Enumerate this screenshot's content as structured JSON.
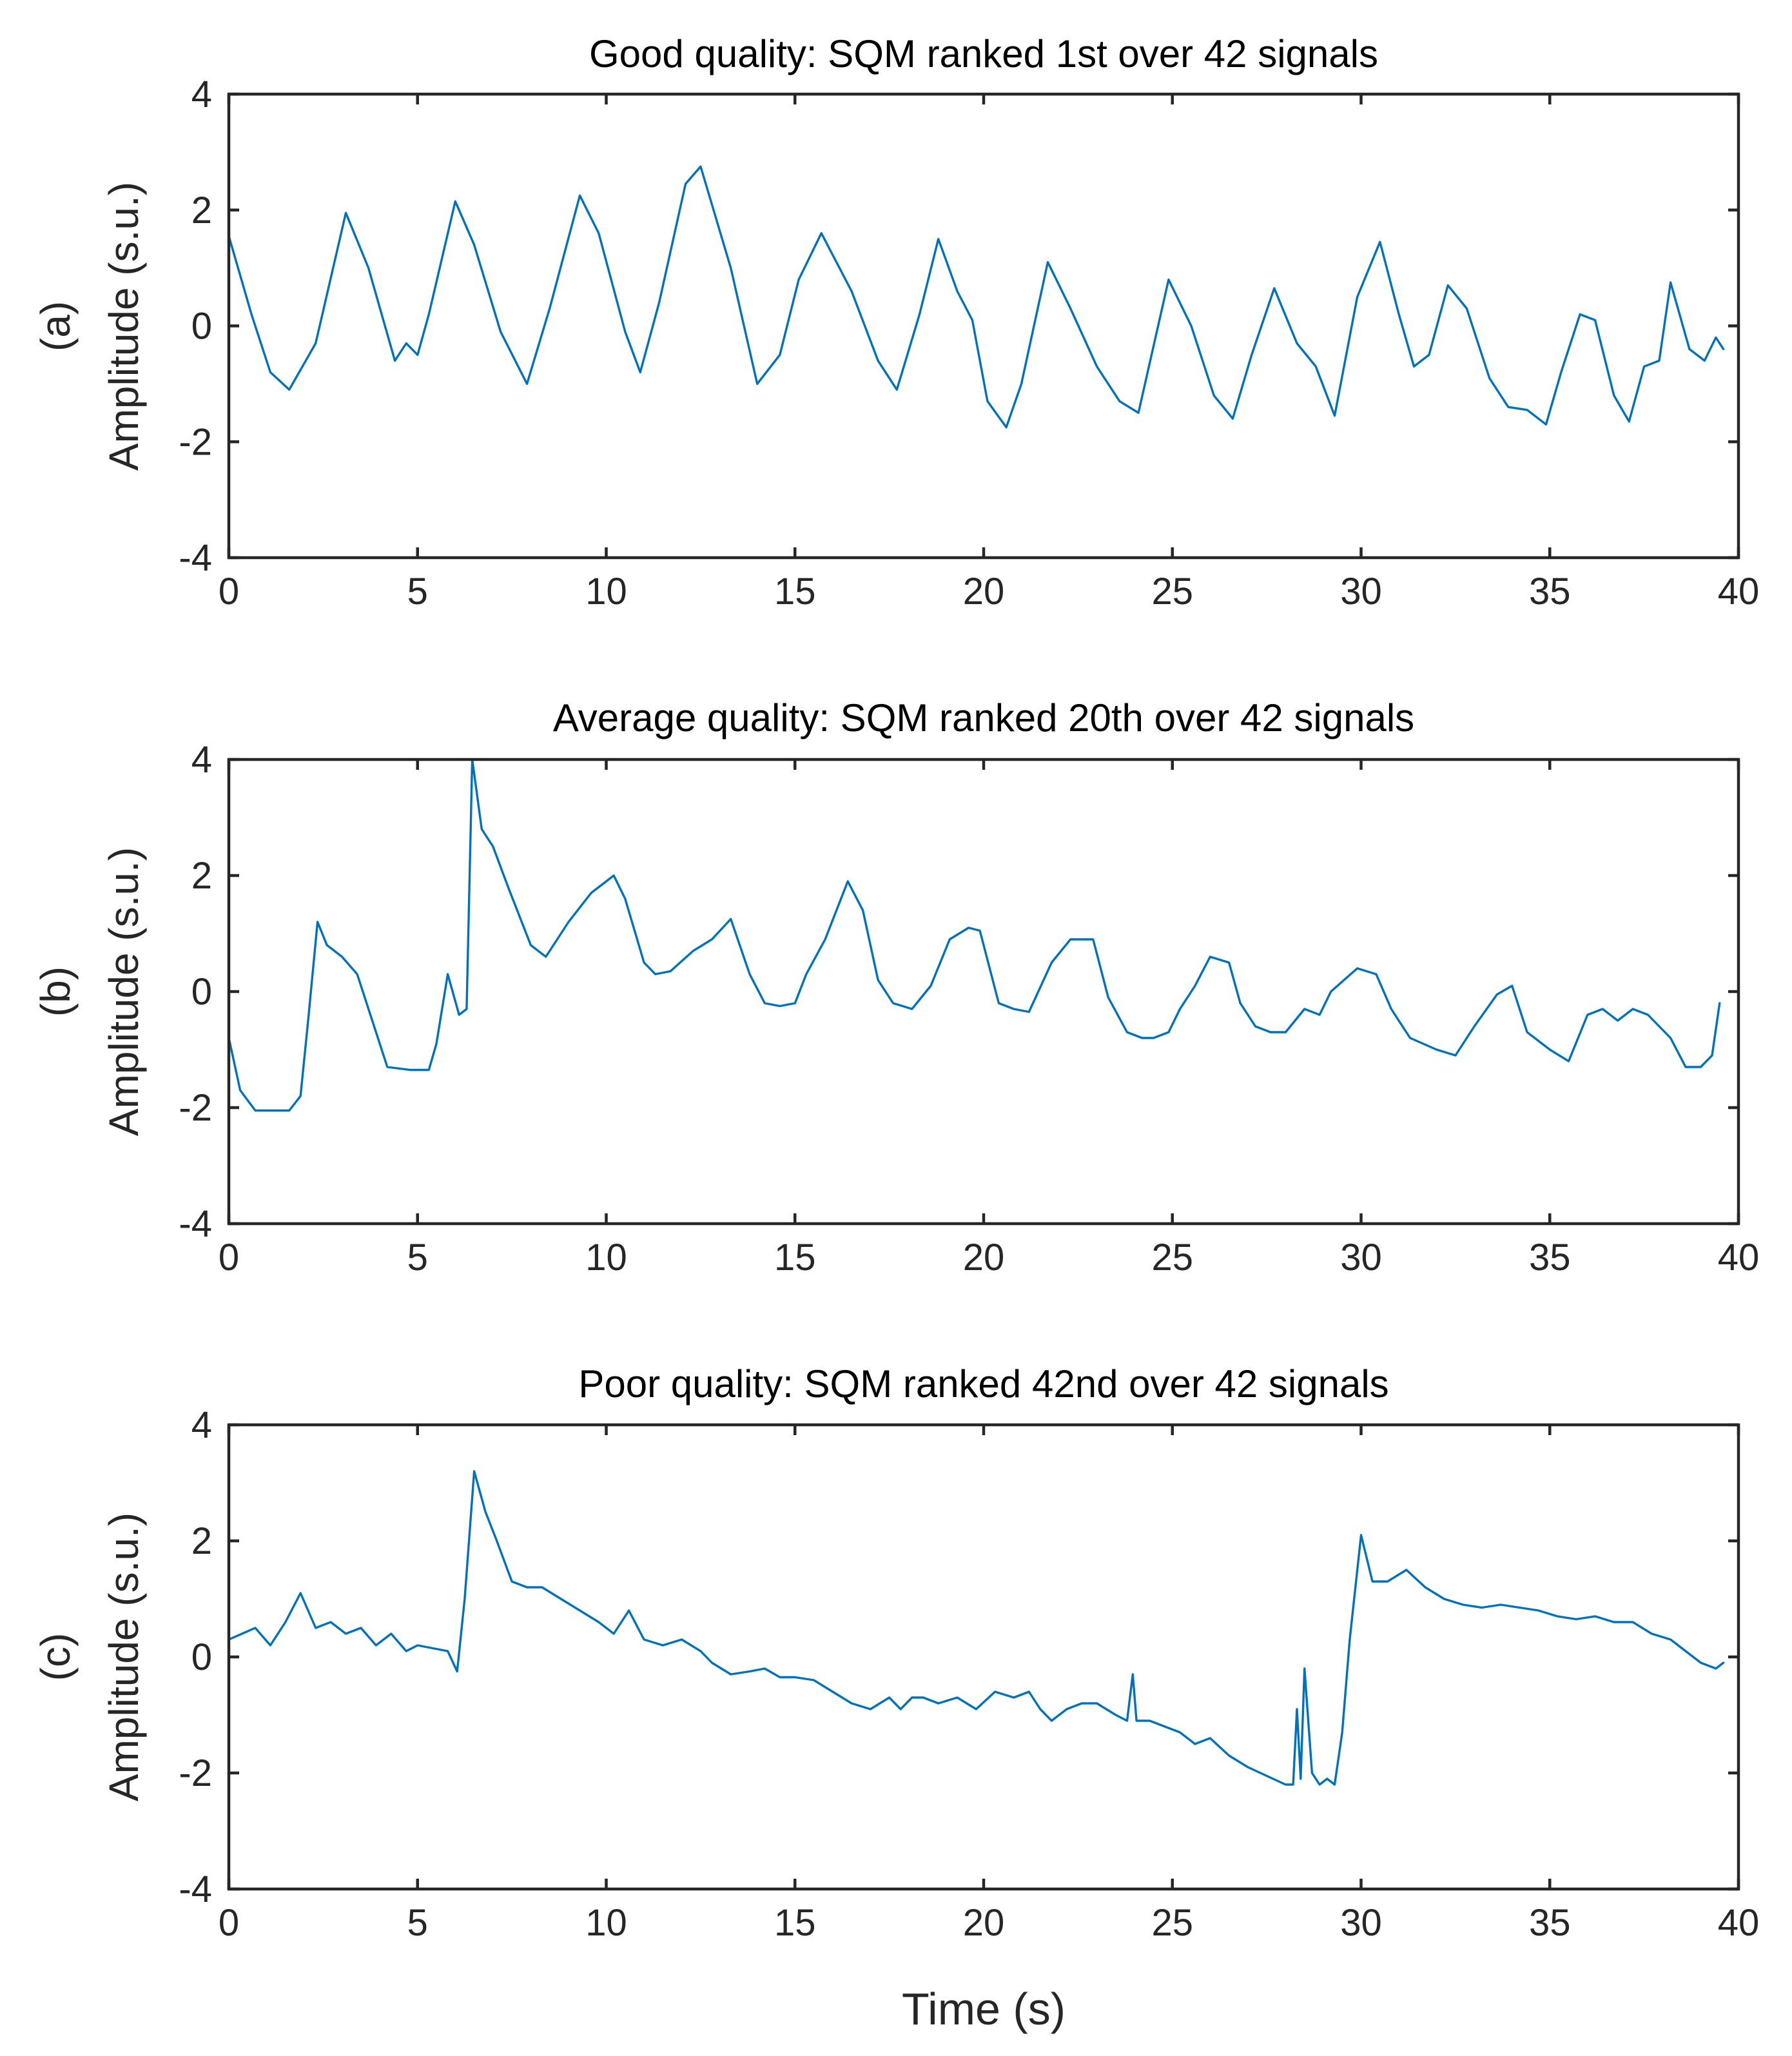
{
  "colors": {
    "line": "#0072BD",
    "axes": "#262626",
    "title": "#000000"
  },
  "chart_data": [
    {
      "type": "line",
      "panel_label": "(a)",
      "title": "Good quality: SQM ranked 1st over 42 signals",
      "xlabel": "",
      "ylabel": "Amplitude (s.u.)",
      "xlim": [
        0,
        40
      ],
      "ylim": [
        -4,
        4
      ],
      "xticks": [
        "0",
        "5",
        "10",
        "15",
        "20",
        "25",
        "30",
        "35",
        "40"
      ],
      "yticks": [
        "4",
        "2",
        "0",
        "-2",
        "-4"
      ],
      "series": [
        {
          "name": "signal",
          "x": [
            0,
            0.6,
            1.1,
            1.6,
            2.3,
            3.1,
            3.7,
            4.4,
            4.7,
            5.0,
            5.3,
            6.0,
            6.5,
            7.2,
            7.9,
            8.5,
            9.3,
            9.8,
            10.5,
            10.9,
            11.4,
            12.1,
            12.5,
            13.3,
            14.0,
            14.6,
            15.1,
            15.7,
            16.5,
            17.2,
            17.7,
            18.3,
            18.8,
            19.3,
            19.7,
            20.1,
            20.6,
            21.0,
            21.7,
            22.3,
            23.0,
            23.6,
            24.1,
            24.9,
            25.5,
            26.1,
            26.6,
            27.1,
            27.7,
            28.3,
            28.8,
            29.3,
            29.9,
            30.5,
            31.0,
            31.4,
            31.8,
            32.3,
            32.8,
            33.4,
            33.9,
            34.4,
            34.9,
            35.3,
            35.8,
            36.2,
            36.7,
            37.1,
            37.5,
            37.9,
            38.2,
            38.7,
            39.1,
            39.4,
            39.6
          ],
          "y": [
            1.55,
            0.2,
            -0.8,
            -1.1,
            -0.3,
            1.95,
            1.0,
            -0.6,
            -0.3,
            -0.5,
            0.2,
            2.15,
            1.4,
            -0.1,
            -1.0,
            0.3,
            2.25,
            1.6,
            -0.1,
            -0.8,
            0.4,
            2.45,
            2.75,
            1.0,
            -1.0,
            -0.5,
            0.8,
            1.6,
            0.6,
            -0.6,
            -1.1,
            0.2,
            1.5,
            0.6,
            0.1,
            -1.3,
            -1.75,
            -1.0,
            1.1,
            0.3,
            -0.7,
            -1.3,
            -1.5,
            0.8,
            0.0,
            -1.2,
            -1.6,
            -0.5,
            0.65,
            -0.3,
            -0.7,
            -1.55,
            0.5,
            1.45,
            0.2,
            -0.7,
            -0.5,
            0.7,
            0.3,
            -0.9,
            -1.4,
            -1.45,
            -1.7,
            -0.8,
            0.2,
            0.1,
            -1.2,
            -1.65,
            -0.7,
            -0.6,
            0.75,
            -0.4,
            -0.6,
            -0.2,
            -0.4
          ]
        }
      ]
    },
    {
      "type": "line",
      "panel_label": "(b)",
      "title": "Average quality: SQM ranked 20th over 42 signals",
      "xlabel": "",
      "ylabel": "Amplitude (s.u.)",
      "xlim": [
        0,
        40
      ],
      "ylim": [
        -4,
        4
      ],
      "xticks": [
        "0",
        "5",
        "10",
        "15",
        "20",
        "25",
        "30",
        "35",
        "40"
      ],
      "yticks": [
        "4",
        "2",
        "0",
        "-2",
        "-4"
      ],
      "series": [
        {
          "name": "signal",
          "x": [
            0,
            0.3,
            0.7,
            1.2,
            1.6,
            1.9,
            2.1,
            2.35,
            2.6,
            3.0,
            3.4,
            4.2,
            4.8,
            5.3,
            5.5,
            5.8,
            6.1,
            6.3,
            6.45,
            6.7,
            7.0,
            7.4,
            8.0,
            8.4,
            9.0,
            9.6,
            10.2,
            10.5,
            11.0,
            11.3,
            11.7,
            12.3,
            12.8,
            13.3,
            13.8,
            14.2,
            14.6,
            15.0,
            15.3,
            15.8,
            16.4,
            16.8,
            17.2,
            17.6,
            18.1,
            18.6,
            19.1,
            19.6,
            19.9,
            20.4,
            20.8,
            21.2,
            21.8,
            22.3,
            22.9,
            23.3,
            23.8,
            24.2,
            24.5,
            24.9,
            25.2,
            25.6,
            26.0,
            26.5,
            26.8,
            27.2,
            27.6,
            28.0,
            28.5,
            28.9,
            29.2,
            29.9,
            30.4,
            30.8,
            31.3,
            32.0,
            32.5,
            33.0,
            33.6,
            34.0,
            34.4,
            35.0,
            35.5,
            36.0,
            36.4,
            36.8,
            37.2,
            37.6,
            38.2,
            38.6,
            39.0,
            39.3,
            39.5
          ],
          "y": [
            -0.8,
            -1.7,
            -2.05,
            -2.05,
            -2.05,
            -1.8,
            -0.5,
            1.2,
            0.8,
            0.6,
            0.3,
            -1.3,
            -1.35,
            -1.35,
            -0.9,
            0.3,
            -0.4,
            -0.3,
            4.0,
            2.8,
            2.5,
            1.8,
            0.8,
            0.6,
            1.2,
            1.7,
            2.0,
            1.6,
            0.5,
            0.3,
            0.35,
            0.7,
            0.9,
            1.25,
            0.3,
            -0.2,
            -0.25,
            -0.2,
            0.3,
            0.9,
            1.9,
            1.4,
            0.2,
            -0.2,
            -0.3,
            0.1,
            0.9,
            1.1,
            1.05,
            -0.2,
            -0.3,
            -0.35,
            0.5,
            0.9,
            0.9,
            -0.1,
            -0.7,
            -0.8,
            -0.8,
            -0.7,
            -0.3,
            0.1,
            0.6,
            0.5,
            -0.2,
            -0.6,
            -0.7,
            -0.7,
            -0.3,
            -0.4,
            0.0,
            0.4,
            0.3,
            -0.3,
            -0.8,
            -1.0,
            -1.1,
            -0.6,
            -0.05,
            0.1,
            -0.7,
            -1.0,
            -1.2,
            -0.4,
            -0.3,
            -0.5,
            -0.3,
            -0.4,
            -0.8,
            -1.3,
            -1.3,
            -1.1,
            -0.2
          ]
        }
      ]
    },
    {
      "type": "line",
      "panel_label": "(c)",
      "title": "Poor quality: SQM ranked 42nd over 42 signals",
      "xlabel": "Time (s)",
      "ylabel": "Amplitude (s.u.)",
      "xlim": [
        0,
        40
      ],
      "ylim": [
        -4,
        4
      ],
      "xticks": [
        "0",
        "5",
        "10",
        "15",
        "20",
        "25",
        "30",
        "35",
        "40"
      ],
      "yticks": [
        "4",
        "2",
        "0",
        "-2",
        "-4"
      ],
      "series": [
        {
          "name": "signal",
          "x": [
            0,
            0.7,
            1.1,
            1.5,
            1.9,
            2.3,
            2.7,
            3.1,
            3.5,
            3.9,
            4.3,
            4.7,
            5.0,
            5.4,
            5.8,
            6.05,
            6.25,
            6.5,
            6.8,
            7.1,
            7.5,
            7.9,
            8.3,
            8.8,
            9.3,
            9.8,
            10.2,
            10.6,
            11.0,
            11.5,
            12.0,
            12.5,
            12.8,
            13.3,
            13.8,
            14.2,
            14.6,
            15.0,
            15.5,
            16.0,
            16.5,
            17.0,
            17.5,
            17.8,
            18.1,
            18.4,
            18.8,
            19.3,
            19.8,
            20.3,
            20.8,
            21.2,
            21.5,
            21.8,
            22.2,
            22.6,
            23.0,
            23.5,
            23.8,
            23.95,
            24.05,
            24.4,
            24.8,
            25.2,
            25.6,
            26.0,
            26.5,
            27.0,
            27.5,
            28.0,
            28.2,
            28.3,
            28.4,
            28.5,
            28.7,
            28.9,
            29.1,
            29.3,
            29.5,
            29.7,
            30.0,
            30.3,
            30.7,
            31.2,
            31.7,
            32.2,
            32.7,
            33.2,
            33.7,
            34.2,
            34.7,
            35.2,
            35.7,
            36.2,
            36.7,
            37.2,
            37.7,
            38.2,
            38.6,
            39.0,
            39.4,
            39.6
          ],
          "y": [
            0.3,
            0.5,
            0.2,
            0.6,
            1.1,
            0.5,
            0.6,
            0.4,
            0.5,
            0.2,
            0.4,
            0.1,
            0.2,
            0.15,
            0.1,
            -0.25,
            1.0,
            3.2,
            2.5,
            2.0,
            1.3,
            1.2,
            1.2,
            1.0,
            0.8,
            0.6,
            0.4,
            0.8,
            0.3,
            0.2,
            0.3,
            0.1,
            -0.1,
            -0.3,
            -0.25,
            -0.2,
            -0.35,
            -0.35,
            -0.4,
            -0.6,
            -0.8,
            -0.9,
            -0.7,
            -0.9,
            -0.7,
            -0.7,
            -0.8,
            -0.7,
            -0.9,
            -0.6,
            -0.7,
            -0.6,
            -0.9,
            -1.1,
            -0.9,
            -0.8,
            -0.8,
            -1.0,
            -1.1,
            -0.3,
            -1.1,
            -1.1,
            -1.2,
            -1.3,
            -1.5,
            -1.4,
            -1.7,
            -1.9,
            -2.05,
            -2.2,
            -2.2,
            -0.9,
            -2.1,
            -0.2,
            -2.0,
            -2.2,
            -2.1,
            -2.2,
            -1.3,
            0.3,
            2.1,
            1.3,
            1.3,
            1.5,
            1.2,
            1.0,
            0.9,
            0.85,
            0.9,
            0.85,
            0.8,
            0.7,
            0.65,
            0.7,
            0.6,
            0.6,
            0.4,
            0.3,
            0.1,
            -0.1,
            -0.2,
            -0.1
          ]
        }
      ]
    }
  ]
}
